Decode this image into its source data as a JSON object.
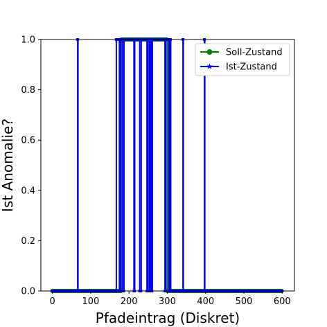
{
  "chart_data": {
    "type": "line",
    "xlabel": "Pfadeintrag (Diskret)",
    "ylabel": "Ist Anomalie?",
    "xlim": [
      -30,
      632
    ],
    "ylim": [
      0,
      1
    ],
    "xticks": [
      0,
      100,
      200,
      300,
      400,
      500,
      600
    ],
    "yticks": [
      "0.0",
      "0.2",
      "0.4",
      "0.6",
      "0.8",
      "1.0"
    ],
    "legend_position": "top-right",
    "series": [
      {
        "name": "Soll-Zustand",
        "color": "#008000",
        "marker": "circle",
        "segments": [
          {
            "x_start": 0,
            "x_end": 180,
            "value": 0
          },
          {
            "x_start": 180,
            "x_end": 300,
            "value": 1
          },
          {
            "x_start": 300,
            "x_end": 600,
            "value": 0
          }
        ]
      },
      {
        "name": "Ist-Zustand",
        "color": "#0000ff",
        "marker": "star",
        "segments": [
          {
            "x_start": 0,
            "x_end": 66,
            "value": 0
          },
          {
            "x_start": 66,
            "x_end": 67,
            "value": 1
          },
          {
            "x_start": 67,
            "x_end": 167,
            "value": 0
          },
          {
            "x_start": 167,
            "x_end": 175,
            "value": 1
          },
          {
            "x_start": 175,
            "x_end": 178,
            "value": 0
          },
          {
            "x_start": 178,
            "x_end": 183,
            "value": 1
          },
          {
            "x_start": 183,
            "x_end": 187,
            "value": 0
          },
          {
            "x_start": 187,
            "x_end": 213,
            "value": 1
          },
          {
            "x_start": 213,
            "x_end": 215,
            "value": 0
          },
          {
            "x_start": 215,
            "x_end": 228,
            "value": 1
          },
          {
            "x_start": 228,
            "x_end": 232,
            "value": 0
          },
          {
            "x_start": 232,
            "x_end": 247,
            "value": 1
          },
          {
            "x_start": 247,
            "x_end": 249,
            "value": 0
          },
          {
            "x_start": 249,
            "x_end": 253,
            "value": 1
          },
          {
            "x_start": 253,
            "x_end": 256,
            "value": 0
          },
          {
            "x_start": 256,
            "x_end": 258,
            "value": 1
          },
          {
            "x_start": 258,
            "x_end": 261,
            "value": 0
          },
          {
            "x_start": 261,
            "x_end": 294,
            "value": 1
          },
          {
            "x_start": 294,
            "x_end": 296,
            "value": 0
          },
          {
            "x_start": 296,
            "x_end": 304,
            "value": 1
          },
          {
            "x_start": 304,
            "x_end": 307,
            "value": 0
          },
          {
            "x_start": 307,
            "x_end": 309,
            "value": 1
          },
          {
            "x_start": 309,
            "x_end": 341,
            "value": 0
          },
          {
            "x_start": 341,
            "x_end": 342,
            "value": 1
          },
          {
            "x_start": 342,
            "x_end": 397,
            "value": 0
          },
          {
            "x_start": 397,
            "x_end": 398,
            "value": 1
          },
          {
            "x_start": 398,
            "x_end": 600,
            "value": 0
          }
        ]
      }
    ]
  }
}
